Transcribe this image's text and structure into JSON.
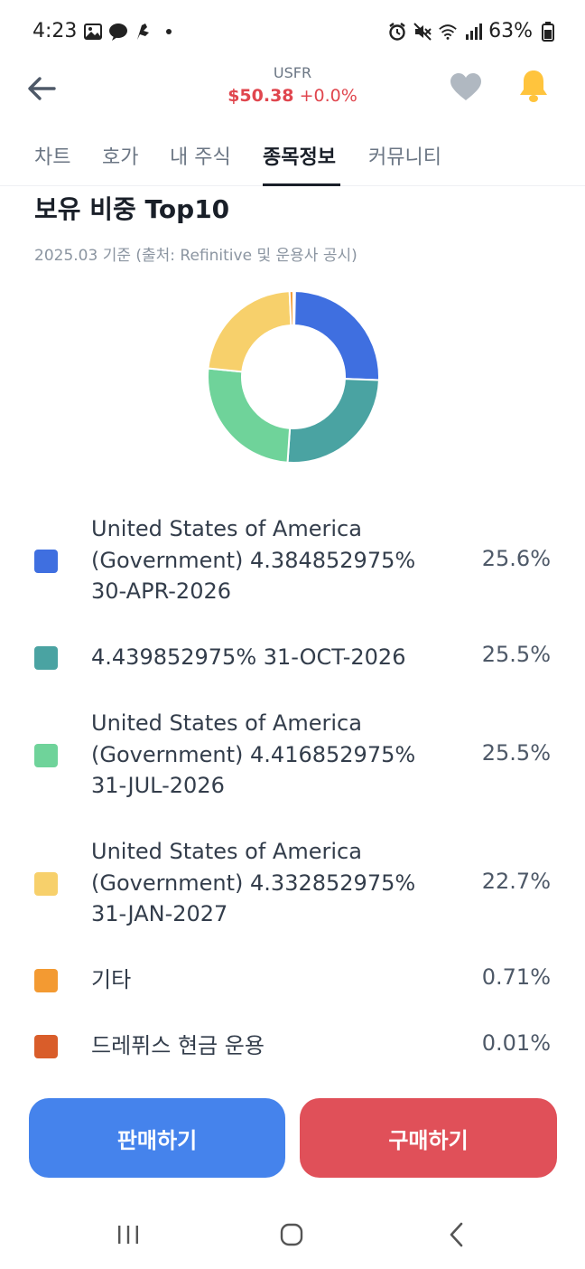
{
  "status_bar": {
    "time": "4:23",
    "battery": "63%",
    "left_icons": [
      "image-icon",
      "messenger-icon",
      "app-icon",
      "dot-icon"
    ],
    "right_icons": [
      "alarm-icon",
      "mute-icon",
      "wifi-icon",
      "signal-icon",
      "battery-icon"
    ]
  },
  "header": {
    "ticker": "USFR",
    "price": "$50.38",
    "change": "+0.0%",
    "price_color": "#e0464e"
  },
  "tabs": [
    {
      "label": "차트"
    },
    {
      "label": "호가"
    },
    {
      "label": "내 주식"
    },
    {
      "label": "종목정보",
      "active": true
    },
    {
      "label": "커뮤니티"
    }
  ],
  "section": {
    "title": "보유 비중 Top10",
    "subtitle": "2025.03 기준 (출처: Refinitive 및 운용사 공시)"
  },
  "chart_data": {
    "type": "pie",
    "categories": [
      "United States of America (Government) 4.384852975% 30-APR-2026",
      "4.439852975% 31-OCT-2026",
      "United States of America (Government) 4.416852975% 31-JUL-2026",
      "United States of America (Government) 4.332852975% 31-JAN-2027",
      "기타",
      "드레퓌스 현금 운용"
    ],
    "values": [
      25.6,
      25.5,
      25.5,
      22.7,
      0.71,
      0.01
    ],
    "colors": [
      "#3f6fe0",
      "#4aa3a2",
      "#6fd39a",
      "#f7d06b",
      "#f39a32",
      "#d95d2a"
    ]
  },
  "legend": [
    {
      "lines": [
        "United States of America",
        "(Government) 4.384852975%",
        "30-APR-2026"
      ],
      "value": "25.6%",
      "color": "#3f6fe0"
    },
    {
      "lines": [
        "4.439852975% 31-OCT-2026"
      ],
      "value": "25.5%",
      "color": "#4aa3a2"
    },
    {
      "lines": [
        "United States of America",
        "(Government) 4.416852975%",
        "31-JUL-2026"
      ],
      "value": "25.5%",
      "color": "#6fd39a"
    },
    {
      "lines": [
        "United States of America",
        "(Government) 4.332852975%",
        "31-JAN-2027"
      ],
      "value": "22.7%",
      "color": "#f7d06b"
    },
    {
      "lines": [
        "기타"
      ],
      "value": "0.71%",
      "color": "#f39a32"
    },
    {
      "lines": [
        "드레퓌스 현금 운용"
      ],
      "value": "0.01%",
      "color": "#d95d2a"
    }
  ],
  "buttons": {
    "sell": "판매하기",
    "buy": "구매하기"
  },
  "nav": [
    "recent-apps-icon",
    "home-icon",
    "back-icon"
  ]
}
